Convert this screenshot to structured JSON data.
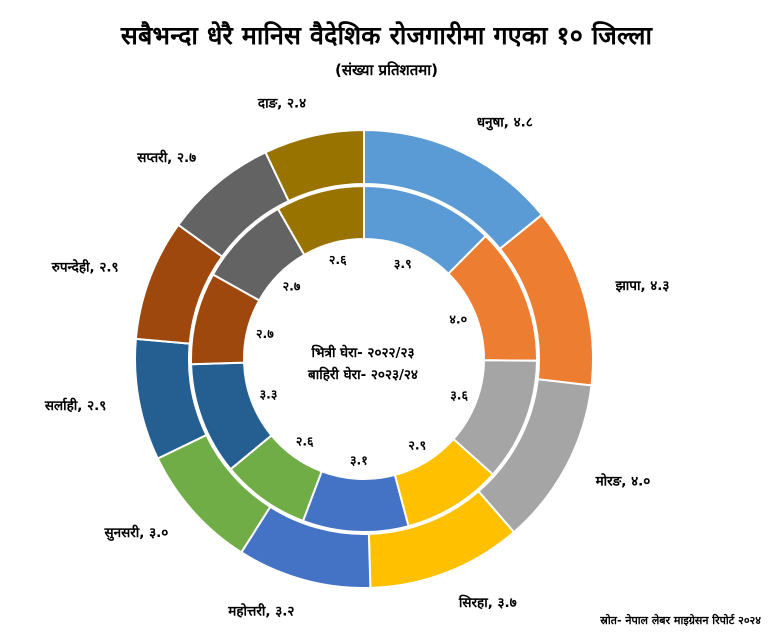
{
  "chart_data": {
    "type": "donut",
    "title": "सबैभन्दा धेरै मानिस वैदेशिक रोजगारीमा गएका १० जिल्ला",
    "subtitle": "(संख्या प्रतिशतमा)",
    "center_labels": [
      "भित्री घेरा- २०२२/२३",
      "बाहिरी घेरा- २०२३/२४"
    ],
    "source": "स्रोत- नेपाल लेबर माइग्रेसन रिपोर्ट २०२४",
    "categories": [
      "धनुषा",
      "झापा",
      "मोरङ",
      "सिरहा",
      "महोत्तरी",
      "सुनसरी",
      "सर्लाही",
      "रुपन्देही",
      "सप्तरी",
      "दाङ"
    ],
    "colors": [
      "#5b9bd5",
      "#ed7d31",
      "#a5a5a5",
      "#ffc000",
      "#4472c4",
      "#70ad47",
      "#255e91",
      "#9e480e",
      "#636363",
      "#997300"
    ],
    "series": [
      {
        "name": "भित्री घेरा- २०२२/२३",
        "ring": "inner",
        "values": [
          3.9,
          4.0,
          3.6,
          2.9,
          3.1,
          2.6,
          3.3,
          2.7,
          2.7,
          2.6
        ],
        "labels": [
          "३.९",
          "४.०",
          "३.६",
          "२.९",
          "३.१",
          "२.६",
          "३.३",
          "२.७",
          "२.७",
          "२.६"
        ]
      },
      {
        "name": "बाहिरी घेरा- २०२३/२४",
        "ring": "outer",
        "values": [
          4.8,
          4.3,
          4.0,
          3.7,
          3.2,
          3.0,
          2.9,
          2.9,
          2.7,
          2.4
        ],
        "labels": [
          "धनुषा, ४.८",
          "झापा, ४.३",
          "मोरङ, ४.०",
          "सिरहा, ३.७",
          "महोत्तरी, ३.२",
          "सुनसरी, ३.०",
          "सर्लाही, २.९",
          "रुपन्देही, २.९",
          "सप्तरी, २.७",
          "दाङ, २.४"
        ]
      }
    ]
  }
}
